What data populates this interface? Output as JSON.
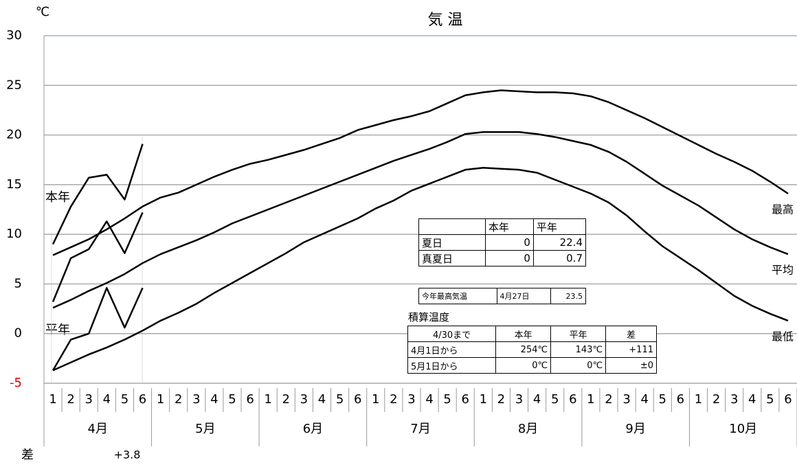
{
  "chart_data": {
    "type": "line",
    "title": "気 温",
    "y_unit": "℃",
    "ylim": [
      -5,
      30
    ],
    "yticks": [
      -5,
      0,
      5,
      10,
      15,
      20,
      25,
      30
    ],
    "grid": true,
    "categories": [
      "1",
      "2",
      "3",
      "4",
      "5",
      "6",
      "1",
      "2",
      "3",
      "4",
      "5",
      "6",
      "1",
      "2",
      "3",
      "4",
      "5",
      "6",
      "1",
      "2",
      "3",
      "4",
      "5",
      "6",
      "1",
      "2",
      "3",
      "4",
      "5",
      "6",
      "1",
      "2",
      "3",
      "4",
      "5",
      "6",
      "1",
      "2",
      "3",
      "4",
      "5",
      "6"
    ],
    "months": [
      "4月",
      "5月",
      "6月",
      "7月",
      "8月",
      "9月",
      "10月"
    ],
    "normal_label": "平年",
    "series": [
      {
        "name": "最高",
        "color": "#000000",
        "values": [
          7.9,
          8.7,
          9.5,
          10.5,
          11.6,
          12.8,
          13.7,
          14.2,
          15.0,
          15.8,
          16.5,
          17.1,
          17.5,
          18.0,
          18.5,
          19.1,
          19.7,
          20.5,
          21.0,
          21.5,
          21.9,
          22.4,
          23.2,
          24.0,
          24.3,
          24.5,
          24.4,
          24.3,
          24.3,
          24.2,
          23.9,
          23.3,
          22.5,
          21.7,
          20.8,
          19.9,
          19.0,
          18.1,
          17.3,
          16.4,
          15.3,
          14.1
        ]
      },
      {
        "name": "平均",
        "color": "#000000",
        "values": [
          2.6,
          3.4,
          4.3,
          5.1,
          6.0,
          7.1,
          8.0,
          8.7,
          9.4,
          10.2,
          11.1,
          11.8,
          12.5,
          13.2,
          13.9,
          14.6,
          15.3,
          16.0,
          16.7,
          17.4,
          18.0,
          18.6,
          19.3,
          20.1,
          20.3,
          20.3,
          20.3,
          20.1,
          19.8,
          19.4,
          19.0,
          18.3,
          17.3,
          16.1,
          14.9,
          13.9,
          12.9,
          11.7,
          10.5,
          9.5,
          8.7,
          8.0
        ]
      },
      {
        "name": "最低",
        "color": "#000000",
        "values": [
          -3.7,
          -2.9,
          -2.1,
          -1.4,
          -0.6,
          0.3,
          1.3,
          2.1,
          3.0,
          4.1,
          5.1,
          6.1,
          7.1,
          8.1,
          9.2,
          10.0,
          10.8,
          11.6,
          12.6,
          13.4,
          14.4,
          15.1,
          15.8,
          16.5,
          16.7,
          16.6,
          16.5,
          16.2,
          15.5,
          14.8,
          14.1,
          13.2,
          11.9,
          10.3,
          8.8,
          7.6,
          6.4,
          5.1,
          3.8,
          2.8,
          2.0,
          1.3
        ]
      }
    ],
    "current": {
      "label": "本年",
      "color": "#000000",
      "series": [
        {
          "values": [
            9.0,
            12.8,
            15.7,
            16.0,
            13.5,
            19.1,
            null,
            null,
            null,
            null,
            null,
            null,
            null,
            null,
            null,
            null,
            null,
            null,
            null,
            null,
            null,
            null,
            null,
            null,
            null,
            null,
            null,
            null,
            null,
            null,
            null,
            null,
            null,
            null,
            null,
            null,
            null,
            null,
            null,
            null,
            null,
            null
          ]
        },
        {
          "values": [
            3.2,
            7.6,
            8.5,
            11.3,
            8.1,
            12.2,
            null,
            null,
            null,
            null,
            null,
            null,
            null,
            null,
            null,
            null,
            null,
            null,
            null,
            null,
            null,
            null,
            null,
            null,
            null,
            null,
            null,
            null,
            null,
            null,
            null,
            null,
            null,
            null,
            null,
            null,
            null,
            null,
            null,
            null,
            null,
            null
          ]
        },
        {
          "values": [
            -3.7,
            -0.6,
            0.0,
            4.6,
            0.6,
            4.6,
            null,
            null,
            null,
            null,
            null,
            null,
            null,
            null,
            null,
            null,
            null,
            null,
            null,
            null,
            null,
            null,
            null,
            null,
            null,
            null,
            null,
            null,
            null,
            null,
            null,
            null,
            null,
            null,
            null,
            null,
            null,
            null,
            null,
            null,
            null,
            null
          ]
        }
      ]
    },
    "diff": {
      "label": "差",
      "value": "+3.8"
    }
  },
  "tables": {
    "days": {
      "rows": [
        [
          "",
          "本年",
          "平年"
        ],
        [
          "夏日",
          "0",
          "22.4"
        ],
        [
          "真夏日",
          "0",
          "0.7"
        ]
      ]
    },
    "max_temp": {
      "rows": [
        [
          "今年最高気温",
          "4月27日",
          "23.5"
        ]
      ]
    },
    "accum": {
      "title": "積算温度",
      "rows": [
        [
          "4/30まで",
          "本年",
          "平年",
          "差"
        ],
        [
          "4月1日から",
          "254℃",
          "143℃",
          "+111"
        ],
        [
          "5月1日から",
          "0℃",
          "0℃",
          "±0"
        ]
      ]
    }
  }
}
